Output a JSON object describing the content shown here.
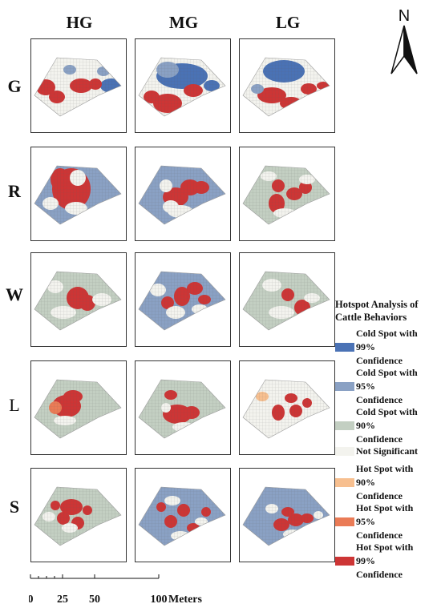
{
  "columns": [
    "HG",
    "MG",
    "LG"
  ],
  "rows": [
    "G",
    "R",
    "W",
    "L",
    "S"
  ],
  "north_label": "N",
  "legend": {
    "title": "Hotspot Analysis of\nCattle Behaviors",
    "items": [
      {
        "label": "Cold Spot with\n99%\nConfidence",
        "color": "#4a72b5"
      },
      {
        "label": "Cold Spot with\n95%\nConfidence",
        "color": "#8aa1c4"
      },
      {
        "label": "Cold Spot with\n90%\nConfidence",
        "color": "#c3cfc2"
      },
      {
        "label": "Not Significant",
        "color": "#f3f3ee"
      },
      {
        "label": "Hot Spot with\n90%\nConfidence",
        "color": "#f7bf8f"
      },
      {
        "label": "Hot Spot with\n95%\nConfidence",
        "color": "#ea7b56"
      },
      {
        "label": "Hot Spot with\n99%\nConfidence",
        "color": "#cd3535"
      }
    ]
  },
  "scale_bar": {
    "ticks": [
      "0",
      "25",
      "50",
      "100"
    ],
    "unit": "Meters"
  }
}
